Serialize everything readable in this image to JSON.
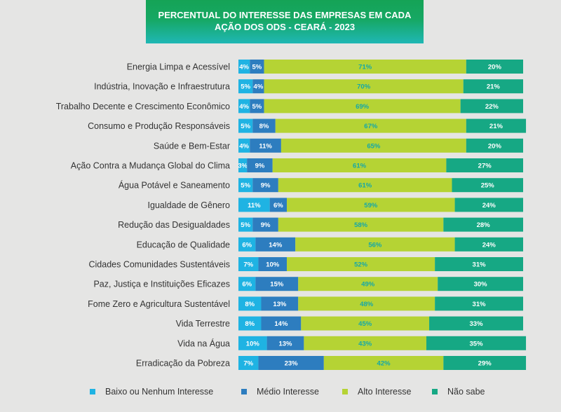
{
  "chart_data": {
    "type": "bar",
    "stacked": true,
    "orientation": "horizontal",
    "title": "PERCENTUAL DO INTERESSE DAS EMPRESAS EM CADA AÇÃO DOS ODS - CEARÁ - 2023",
    "title_lines": [
      "PERCENTUAL DO INTERESSE DAS EMPRESAS EM CADA",
      "AÇÃO DOS ODS - CEARÁ - 2023"
    ],
    "categories": [
      "Energia Limpa e Acessível",
      "Indústria, Inovação e Infraestrutura",
      "Trabalho Decente e Crescimento Econômico",
      "Consumo e Produção Responsáveis",
      "Saúde e Bem-Estar",
      "Ação Contra a Mudança Global do Clima",
      "Água Potável e Saneamento",
      "Igualdade de Gênero",
      "Redução das Desigualdades",
      "Educação de Qualidade",
      "Cidades Comunidades Sustentáveis",
      "Paz, Justiça e Instituições Eficazes",
      "Fome Zero e Agricultura Sustentável",
      "Vida Terrestre",
      "Vida na Água",
      "Erradicação da Pobreza"
    ],
    "series": [
      {
        "name": "Baixo ou Nenhum Interesse",
        "color": "#1fb3e3",
        "label_color": "#ffffff",
        "values": [
          4,
          5,
          4,
          5,
          4,
          3,
          5,
          11,
          5,
          6,
          7,
          6,
          8,
          8,
          10,
          7
        ]
      },
      {
        "name": "Médio Interesse",
        "color": "#2d7dbf",
        "label_color": "#ffffff",
        "values": [
          5,
          4,
          5,
          8,
          11,
          9,
          9,
          6,
          9,
          14,
          10,
          15,
          13,
          14,
          13,
          23
        ]
      },
      {
        "name": "Alto Interesse",
        "color": "#b5d334",
        "label_color": "#15a8a8",
        "values": [
          71,
          70,
          69,
          67,
          65,
          61,
          61,
          59,
          58,
          56,
          52,
          49,
          48,
          45,
          43,
          42
        ]
      },
      {
        "name": "Não sabe",
        "color": "#16a884",
        "label_color": "#ffffff",
        "values": [
          20,
          21,
          22,
          21,
          20,
          27,
          25,
          24,
          28,
          24,
          31,
          30,
          31,
          33,
          35,
          29
        ]
      }
    ],
    "value_suffix": "%",
    "legend_position": "bottom",
    "grid": false,
    "xlim": [
      0,
      100
    ]
  },
  "legend": {
    "items": [
      {
        "label": "Baixo ou Nenhum Interesse",
        "color": "#1fb3e3"
      },
      {
        "label": "Médio Interesse",
        "color": "#2d7dbf"
      },
      {
        "label": "Alto Interesse",
        "color": "#b5d334"
      },
      {
        "label": "Não sabe",
        "color": "#16a884"
      }
    ]
  }
}
